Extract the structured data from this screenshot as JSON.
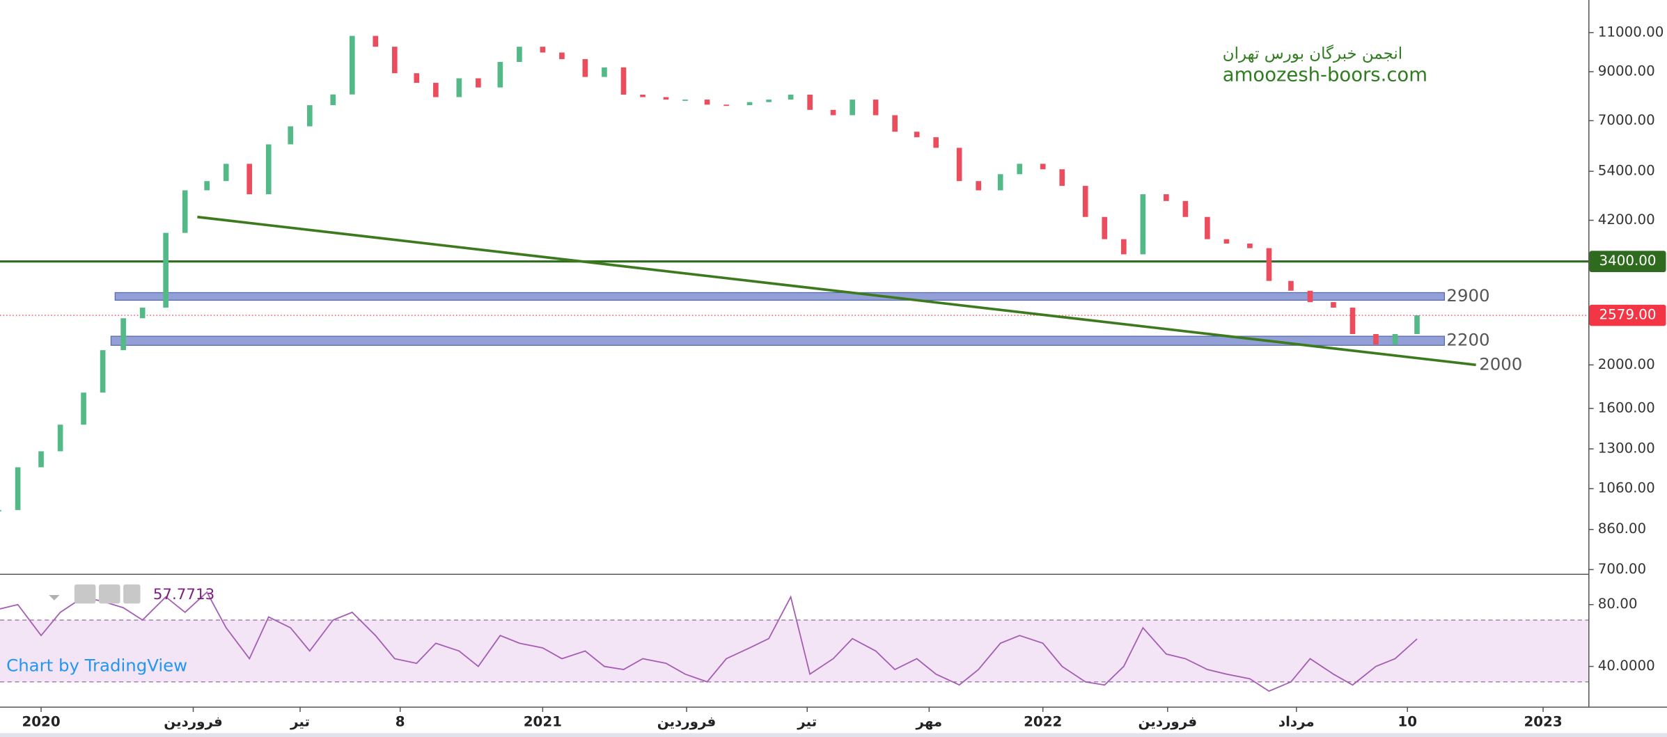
{
  "chart_data": [
    {
      "type": "candlestick",
      "x": [
        "2019-12-01",
        "2019-12-15",
        "2020-01-01",
        "2020-01-15",
        "2020-02-01",
        "2020-02-15",
        "2020-03-01",
        "2020-03-15",
        "2020-04-01",
        "2020-04-15",
        "2020-05-01",
        "2020-05-15",
        "2020-06-01",
        "2020-06-15",
        "2020-07-01",
        "2020-07-15",
        "2020-08-01",
        "2020-08-15",
        "2020-09-01",
        "2020-09-15",
        "2020-10-01",
        "2020-10-15",
        "2020-11-01",
        "2020-11-15",
        "2020-12-01",
        "2020-12-15",
        "2021-01-01",
        "2021-01-15",
        "2021-02-01",
        "2021-02-15",
        "2021-03-01",
        "2021-03-15",
        "2021-04-01",
        "2021-04-15",
        "2021-05-01",
        "2021-05-15",
        "2021-06-01",
        "2021-06-15",
        "2021-07-01",
        "2021-07-15",
        "2021-08-01",
        "2021-08-15",
        "2021-09-01",
        "2021-09-15",
        "2021-10-01",
        "2021-10-15",
        "2021-11-01",
        "2021-11-15",
        "2021-12-01",
        "2021-12-15",
        "2022-01-01",
        "2022-01-15",
        "2022-02-01",
        "2022-02-15",
        "2022-03-01",
        "2022-03-15",
        "2022-04-01",
        "2022-04-15",
        "2022-05-01",
        "2022-05-15",
        "2022-06-01",
        "2022-06-15",
        "2022-07-01",
        "2022-07-15",
        "2022-08-01",
        "2022-08-15",
        "2022-09-01",
        "2022-09-15",
        "2022-10-01"
      ],
      "values": [
        950,
        1183,
        1284,
        1472,
        1735,
        2157,
        2541,
        2683,
        3937,
        4897,
        5135,
        5611,
        4800,
        6200,
        6800,
        7580,
        8008,
        10815,
        10230,
        8930,
        8500,
        7900,
        8700,
        8300,
        9460,
        10230,
        9930,
        9600,
        8760,
        9200,
        8000,
        7900,
        7800,
        7800,
        7600,
        7580,
        7700,
        7800,
        8000,
        7400,
        7200,
        7800,
        7200,
        6615,
        6430,
        6090,
        5135,
        4897,
        5320,
        5611,
        5456,
        5010,
        4272,
        3812,
        3527,
        4800,
        4636,
        4272,
        3812,
        3727,
        3640,
        3077,
        2926,
        2760,
        2683,
        2343,
        2221,
        2343,
        2579
      ],
      "up_color": "#53b987",
      "down_color": "#eb4d5c",
      "log_scale": true,
      "ylim": [
        685,
        13000
      ],
      "yticks": [
        {
          "value": 700,
          "label": "700.00"
        },
        {
          "value": 860,
          "label": "860.00"
        },
        {
          "value": 1060,
          "label": "1060.00"
        },
        {
          "value": 1300,
          "label": "1300.00"
        },
        {
          "value": 1600,
          "label": "1600.00"
        },
        {
          "value": 2000,
          "label": "2000.00"
        },
        {
          "value": 4200,
          "label": "4200.00"
        },
        {
          "value": 5400,
          "label": "5400.00"
        },
        {
          "value": 7000,
          "label": "7000.00"
        },
        {
          "value": 9000,
          "label": "9000.00"
        },
        {
          "value": 11000,
          "label": "11000.00"
        }
      ],
      "xlim": [
        "2019-12-02",
        "2023-02-03"
      ],
      "xticks": [
        {
          "value": "2020-01-01",
          "label": "2020"
        },
        {
          "value": "2020-04-21",
          "label": "فروردین"
        },
        {
          "value": "2020-07-08",
          "label": "تیر"
        },
        {
          "value": "2020-09-19",
          "label": "8"
        },
        {
          "value": "2021-01-01",
          "label": "2021"
        },
        {
          "value": "2021-04-16",
          "label": "فروردین"
        },
        {
          "value": "2021-07-13",
          "label": "تیر"
        },
        {
          "value": "2021-10-10",
          "label": "مهر"
        },
        {
          "value": "2022-01-01",
          "label": "2022"
        },
        {
          "value": "2022-04-02",
          "label": "فروردین"
        },
        {
          "value": "2022-07-05",
          "label": "مرداد"
        },
        {
          "value": "2022-09-24",
          "label": "10"
        },
        {
          "value": "2023-01-01",
          "label": "2023"
        }
      ],
      "levels": [
        {
          "value": 3400,
          "label": "3400.00",
          "color": "#2e6b1f"
        }
      ],
      "last_price": {
        "value": 2579,
        "label": "2579.00",
        "color": "#f23645"
      },
      "zones": [
        {
          "value": 2900,
          "low": 2787,
          "high": 2898,
          "x": [
            "2020-02-24",
            "2022-10-21"
          ],
          "color": "#7f8fd0"
        },
        {
          "value": 2200,
          "low": 2211,
          "high": 2317,
          "x": [
            "2020-02-21",
            "2022-10-21"
          ],
          "color": "#7f8fd0"
        }
      ],
      "trendline": {
        "x": [
          "2020-04-24",
          "2022-11-13"
        ],
        "y": [
          4272,
          2000
        ],
        "color": "#3d7a1e"
      },
      "annotations": [
        "انجمن خبرگان بورس تهران",
        "amoozesh-boors.com",
        "Chart by TradingView"
      ]
    },
    {
      "type": "line",
      "x": [
        "2019-12-01",
        "2019-12-15",
        "2020-01-01",
        "2020-01-15",
        "2020-02-01",
        "2020-02-15",
        "2020-03-01",
        "2020-03-15",
        "2020-04-01",
        "2020-04-15",
        "2020-05-01",
        "2020-05-15",
        "2020-06-01",
        "2020-06-15",
        "2020-07-01",
        "2020-07-15",
        "2020-08-01",
        "2020-08-15",
        "2020-09-01",
        "2020-09-15",
        "2020-10-01",
        "2020-10-15",
        "2020-11-01",
        "2020-11-15",
        "2020-12-01",
        "2020-12-15",
        "2021-01-01",
        "2021-01-15",
        "2021-02-01",
        "2021-02-15",
        "2021-03-01",
        "2021-03-15",
        "2021-04-01",
        "2021-04-15",
        "2021-05-01",
        "2021-05-15",
        "2021-06-01",
        "2021-06-15",
        "2021-07-01",
        "2021-07-15",
        "2021-08-01",
        "2021-08-15",
        "2021-09-01",
        "2021-09-15",
        "2021-10-01",
        "2021-10-15",
        "2021-11-01",
        "2021-11-15",
        "2021-12-01",
        "2021-12-15",
        "2022-01-01",
        "2022-01-15",
        "2022-02-01",
        "2022-02-15",
        "2022-03-01",
        "2022-03-15",
        "2022-04-01",
        "2022-04-15",
        "2022-05-01",
        "2022-05-15",
        "2022-06-01",
        "2022-06-15",
        "2022-07-01",
        "2022-07-15",
        "2022-08-01",
        "2022-08-15",
        "2022-09-01",
        "2022-09-15",
        "2022-10-01"
      ],
      "values": [
        77,
        80,
        60,
        75,
        85,
        82,
        78,
        70,
        85,
        75,
        88,
        65,
        45,
        72,
        65,
        50,
        70,
        75,
        60,
        45,
        42,
        55,
        50,
        40,
        60,
        55,
        52,
        45,
        50,
        40,
        38,
        45,
        42,
        35,
        30,
        45,
        52,
        58,
        85,
        35,
        45,
        58,
        50,
        38,
        45,
        35,
        28,
        38,
        55,
        60,
        55,
        40,
        30,
        28,
        40,
        65,
        48,
        45,
        38,
        35,
        32,
        24,
        30,
        45,
        35,
        28,
        40,
        45,
        57.7713
      ],
      "color": "#a45fb4",
      "bands": [
        30,
        70
      ],
      "ylim": [
        14,
        96.5
      ],
      "yticks": [
        {
          "value": 40,
          "label": "40.0000"
        },
        {
          "value": 80,
          "label": "80.00"
        }
      ]
    }
  ]
}
